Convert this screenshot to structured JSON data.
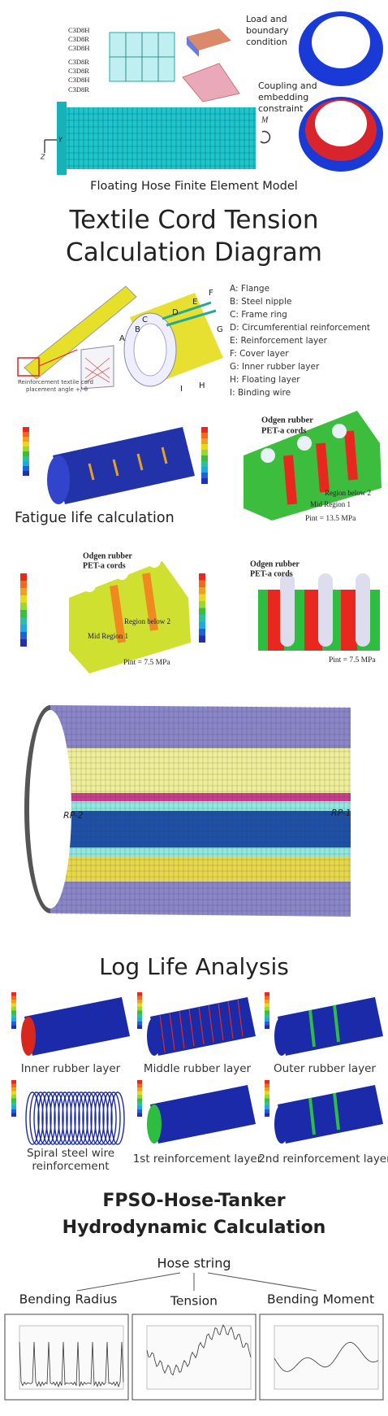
{
  "fem_model": {
    "element_labels": [
      "C3D8H",
      "C3D8R",
      "C3D8H",
      "C3D8R",
      "C3D8R",
      "C3D8H",
      "C3D8R"
    ],
    "load_text": [
      "Load and",
      "boundary",
      "condition"
    ],
    "coupling_text": [
      "Coupling and",
      "embedding",
      "constraint"
    ],
    "moment_label": "M",
    "axis_labels": [
      "Y",
      "Z"
    ],
    "caption": "Floating Hose Finite Element Model"
  },
  "textile": {
    "title_lines": [
      "Textile Cord Tension",
      "Calculation Diagram"
    ],
    "letters": [
      "A",
      "B",
      "C",
      "D",
      "E",
      "F",
      "G",
      "H",
      "I"
    ],
    "legend": [
      "A: Flange",
      "B: Steel nipple",
      "C: Frame ring",
      "D: Circumferential reinforcement",
      "E: Reinforcement layer",
      "F: Cover layer",
      "G: Inner rubber layer",
      "H: Floating layer",
      "I: Binding wire"
    ],
    "note": [
      "Reinforcement textile cord",
      "placement angle +/-θ"
    ]
  },
  "fatigue": {
    "caption": "Fatigue life calculation",
    "panel_a": {
      "title": [
        "Odgen rubber",
        "PET-a cords"
      ],
      "regions": [
        "Region below 2",
        "Mid Region 1"
      ],
      "pressure": "Pint = 13.5 MPa"
    },
    "panel_b": {
      "title": [
        "Odgen rubber",
        "PET-a cords"
      ],
      "regions": [
        "Region below 2",
        "Mid Region 1"
      ],
      "pressure": "Pint = 7.5 MPa"
    },
    "panel_c": {
      "title": [
        "Odgen rubber",
        "PET-a cords"
      ],
      "pressure": "Pint = 7.5 MPa"
    }
  },
  "model": {
    "points": [
      "RP-2",
      "RP-1"
    ]
  },
  "log_life": {
    "title": "Log Life Analysis",
    "labels": [
      "Inner rubber layer",
      "Middle rubber layer",
      "Outer rubber layer",
      "Spiral steel wire",
      "reinforcement",
      "1st reinforcement layer",
      "2nd reinforcement layer"
    ]
  },
  "hydro": {
    "title_lines": [
      "FPSO-Hose-Tanker",
      "Hydrodynamic Calculation"
    ],
    "root": "Hose string",
    "branches": [
      "Bending Radius",
      "Tension",
      "Bending Moment"
    ]
  }
}
